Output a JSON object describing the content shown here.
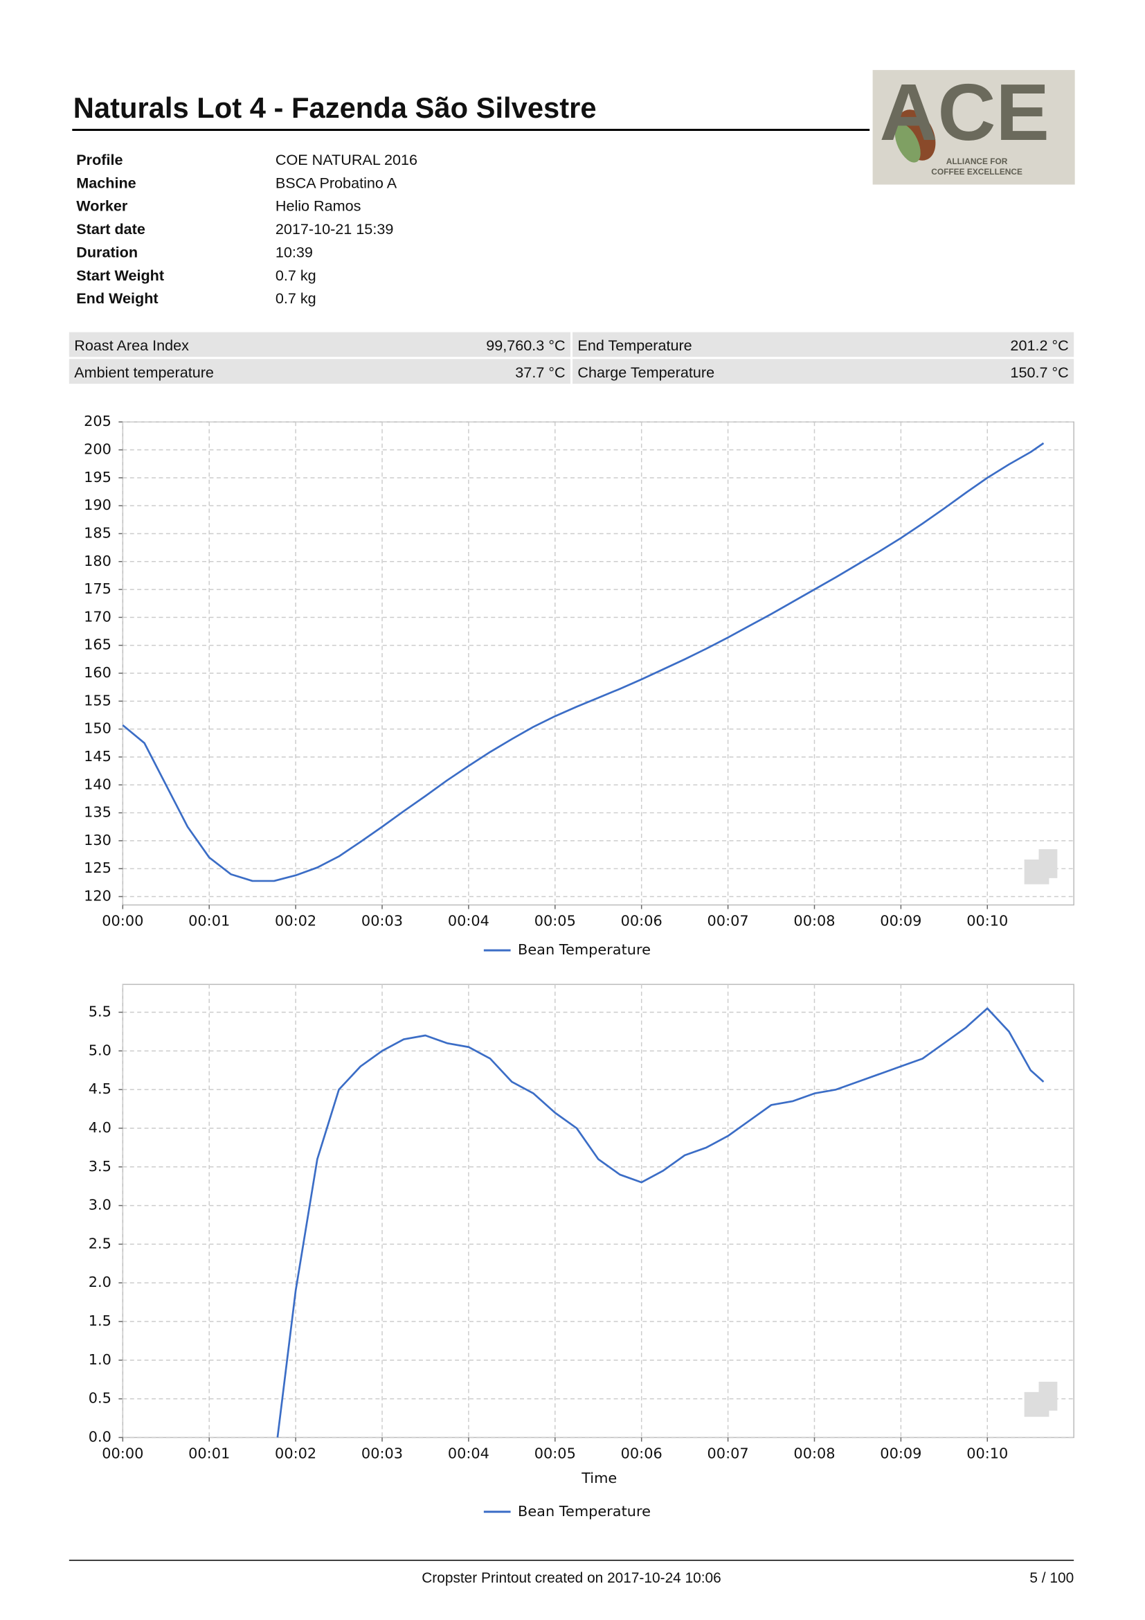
{
  "header": {
    "title": "Naturals Lot 4 - Fazenda São Silvestre"
  },
  "logo": {
    "text": "ACE",
    "subtitle": [
      "ALLIANCE FOR",
      "COFFEE EXCELLENCE"
    ]
  },
  "info": [
    [
      "Profile",
      "COE NATURAL 2016"
    ],
    [
      "Machine",
      "BSCA Probatino A"
    ],
    [
      "Worker",
      "Helio Ramos"
    ],
    [
      "Start date",
      "2017-10-21 15:39"
    ],
    [
      "Duration",
      "10:39"
    ],
    [
      "Start Weight",
      "0.7 kg"
    ],
    [
      "End Weight",
      "0.7 kg"
    ]
  ],
  "stats": [
    [
      "Roast Area Index",
      "99,760.3 °C",
      "End Temperature",
      "201.2 °C"
    ],
    [
      "Ambient temperature",
      "37.7 °C",
      "Charge Temperature",
      "150.7 °C"
    ]
  ],
  "chart_data": [
    {
      "type": "line",
      "grid": true,
      "legend": "bottom",
      "x": [
        0,
        0.25,
        0.5,
        0.75,
        1,
        1.25,
        1.5,
        1.75,
        2,
        2.25,
        2.5,
        2.75,
        3,
        3.25,
        3.5,
        3.75,
        4,
        4.25,
        4.5,
        4.75,
        5,
        5.25,
        5.5,
        5.75,
        6,
        6.25,
        6.5,
        6.75,
        7,
        7.25,
        7.5,
        7.75,
        8,
        8.25,
        8.5,
        8.75,
        9,
        9.25,
        9.5,
        9.75,
        10,
        10.25,
        10.5,
        10.65
      ],
      "series": [
        {
          "name": "Bean Temperature",
          "color": "#3b6dc6",
          "values": [
            150.7,
            147.5,
            140,
            132.5,
            127,
            124,
            122.8,
            122.8,
            123.8,
            125.2,
            127.2,
            129.8,
            132.5,
            135.3,
            138,
            140.8,
            143.4,
            145.9,
            148.2,
            150.4,
            152.3,
            154,
            155.6,
            157.2,
            158.9,
            160.7,
            162.5,
            164.4,
            166.4,
            168.5,
            170.6,
            172.8,
            175,
            177.2,
            179.5,
            181.8,
            184.2,
            186.8,
            189.5,
            192.3,
            195,
            197.4,
            199.6,
            201.2
          ]
        }
      ],
      "xlim": [
        0,
        11
      ],
      "xticks": [
        {
          "value": 0,
          "label": "00:00"
        },
        {
          "value": 1,
          "label": "00:01"
        },
        {
          "value": 2,
          "label": "00:02"
        },
        {
          "value": 3,
          "label": "00:03"
        },
        {
          "value": 4,
          "label": "00:04"
        },
        {
          "value": 5,
          "label": "00:05"
        },
        {
          "value": 6,
          "label": "00:06"
        },
        {
          "value": 7,
          "label": "00:07"
        },
        {
          "value": 8,
          "label": "00:08"
        },
        {
          "value": 9,
          "label": "00:09"
        },
        {
          "value": 10,
          "label": "00:10"
        }
      ],
      "ylim": [
        118.5,
        205
      ],
      "yticks": [
        120,
        125,
        130,
        135,
        140,
        145,
        150,
        155,
        160,
        165,
        170,
        175,
        180,
        185,
        190,
        195,
        200,
        205
      ]
    },
    {
      "type": "line",
      "grid": true,
      "legend": "bottom",
      "xlabel": "Time",
      "x": [
        1.79,
        2,
        2.25,
        2.5,
        2.75,
        3,
        3.25,
        3.5,
        3.75,
        4,
        4.25,
        4.5,
        4.75,
        5,
        5.25,
        5.5,
        5.75,
        6,
        6.25,
        6.5,
        6.75,
        7,
        7.25,
        7.5,
        7.75,
        8,
        8.25,
        8.5,
        8.75,
        9,
        9.25,
        9.5,
        9.75,
        10,
        10.25,
        10.5,
        10.65
      ],
      "series": [
        {
          "name": "Bean Temperature",
          "color": "#3b6dc6",
          "values": [
            0,
            1.9,
            3.6,
            4.5,
            4.8,
            5.0,
            5.15,
            5.2,
            5.1,
            5.05,
            4.9,
            4.6,
            4.45,
            4.2,
            4.0,
            3.6,
            3.4,
            3.3,
            3.45,
            3.65,
            3.75,
            3.9,
            4.1,
            4.3,
            4.35,
            4.45,
            4.5,
            4.6,
            4.7,
            4.8,
            4.9,
            5.1,
            5.3,
            5.55,
            5.25,
            4.75,
            4.6
          ]
        }
      ],
      "xlim": [
        0,
        11
      ],
      "xticks": [
        {
          "value": 0,
          "label": "00:00"
        },
        {
          "value": 1,
          "label": "00:01"
        },
        {
          "value": 2,
          "label": "00:02"
        },
        {
          "value": 3,
          "label": "00:03"
        },
        {
          "value": 4,
          "label": "00:04"
        },
        {
          "value": 5,
          "label": "00:05"
        },
        {
          "value": 6,
          "label": "00:06"
        },
        {
          "value": 7,
          "label": "00:07"
        },
        {
          "value": 8,
          "label": "00:08"
        },
        {
          "value": 9,
          "label": "00:09"
        },
        {
          "value": 10,
          "label": "00:10"
        }
      ],
      "ylim": [
        0,
        5.86
      ],
      "yticks": [
        {
          "value": 0,
          "label": "0.0"
        },
        {
          "value": 0.5,
          "label": "0.5"
        },
        {
          "value": 1,
          "label": "1.0"
        },
        {
          "value": 1.5,
          "label": "1.5"
        },
        {
          "value": 2,
          "label": "2.0"
        },
        {
          "value": 2.5,
          "label": "2.5"
        },
        {
          "value": 3,
          "label": "3.0"
        },
        {
          "value": 3.5,
          "label": "3.5"
        },
        {
          "value": 4,
          "label": "4.0"
        },
        {
          "value": 4.5,
          "label": "4.5"
        },
        {
          "value": 5,
          "label": "5.0"
        },
        {
          "value": 5.5,
          "label": "5.5"
        }
      ]
    }
  ],
  "footer": {
    "text": "Cropster Printout created on 2017-10-24 10:06",
    "page": "5 / 100"
  }
}
